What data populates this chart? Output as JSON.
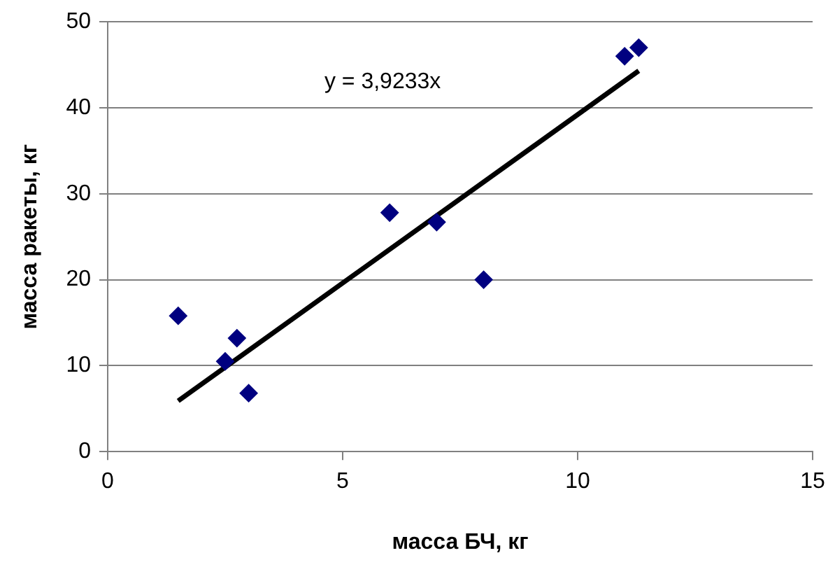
{
  "chart_data": {
    "type": "scatter",
    "xlabel": "масса БЧ, кг",
    "ylabel": "масса ракеты, кг",
    "series": [
      {
        "color": "#000080",
        "x": [
          1.5,
          2.5,
          2.75,
          3,
          6,
          7,
          8,
          11,
          11.3
        ],
        "values": [
          15.8,
          10.5,
          13.2,
          6.8,
          27.8,
          26.7,
          20,
          46,
          47
        ],
        "marker": "diamond"
      },
      {
        "type": "line",
        "color": "#000000",
        "x": [
          1.5,
          11.3
        ],
        "values": [
          5.9,
          44.3
        ],
        "marker": "none"
      }
    ],
    "xlim": [
      0,
      15
    ],
    "xticks": [
      0,
      5,
      10,
      15
    ],
    "ylim": [
      0,
      50
    ],
    "yticks": [
      0,
      10,
      20,
      30,
      40,
      50
    ],
    "grid": "y",
    "legend": false,
    "annotations": [
      "y = 3,9233x"
    ]
  }
}
